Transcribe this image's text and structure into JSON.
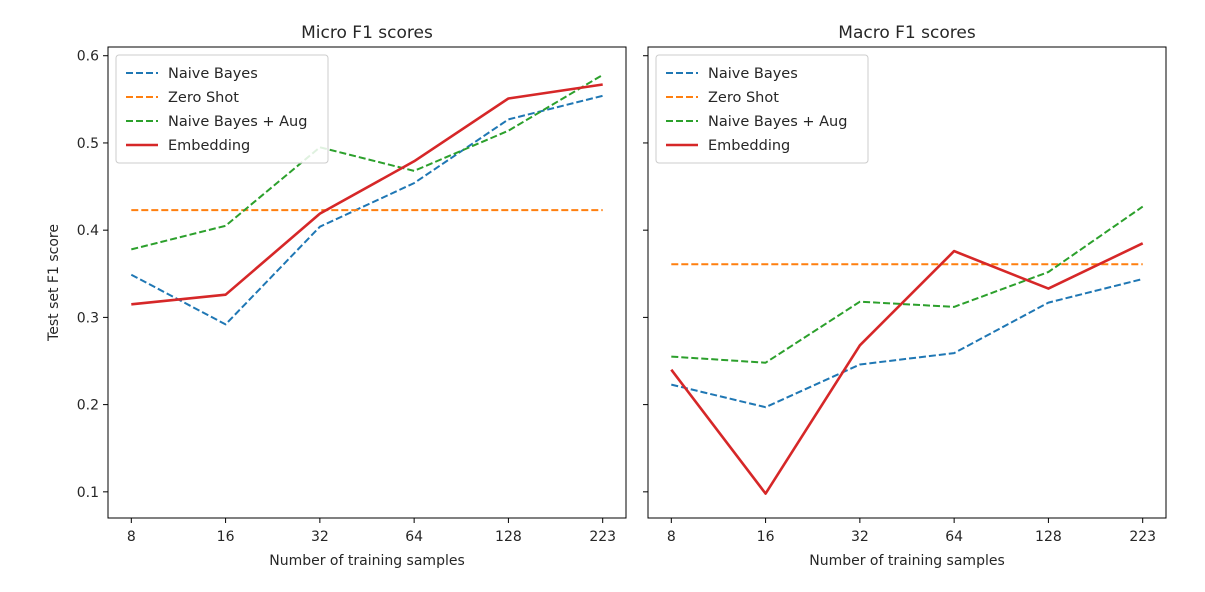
{
  "chart_data": [
    {
      "type": "line",
      "title": "Micro F1 scores",
      "xlabel": "Number of training samples",
      "ylabel": "Test set F1 score",
      "categories": [
        "8",
        "16",
        "32",
        "64",
        "128",
        "223"
      ],
      "ylim": [
        0.07,
        0.61
      ],
      "yticks": [
        "0.1",
        "0.2",
        "0.3",
        "0.4",
        "0.5",
        "0.6"
      ],
      "show_ytick_labels": true,
      "grid": false,
      "legend_position": "top-left",
      "series": [
        {
          "name": "Naive Bayes",
          "color": "#1f77b4",
          "style": "dashed",
          "values": [
            0.349,
            0.292,
            0.404,
            0.454,
            0.527,
            0.554
          ]
        },
        {
          "name": "Zero Shot",
          "color": "#ff7f0e",
          "style": "dashed",
          "values": [
            0.423,
            0.423,
            0.423,
            0.423,
            0.423,
            0.423
          ]
        },
        {
          "name": "Naive Bayes + Aug",
          "color": "#2ca02c",
          "style": "dashed",
          "values": [
            0.378,
            0.405,
            0.495,
            0.468,
            0.514,
            0.578
          ]
        },
        {
          "name": "Embedding",
          "color": "#d62728",
          "style": "solid",
          "values": [
            0.315,
            0.326,
            0.419,
            0.479,
            0.551,
            0.567
          ]
        }
      ]
    },
    {
      "type": "line",
      "title": "Macro F1 scores",
      "xlabel": "Number of training samples",
      "ylabel": "",
      "categories": [
        "8",
        "16",
        "32",
        "64",
        "128",
        "223"
      ],
      "ylim": [
        0.07,
        0.61
      ],
      "yticks": [
        "0.1",
        "0.2",
        "0.3",
        "0.4",
        "0.5",
        "0.6"
      ],
      "show_ytick_labels": false,
      "grid": false,
      "legend_position": "top-left",
      "series": [
        {
          "name": "Naive Bayes",
          "color": "#1f77b4",
          "style": "dashed",
          "values": [
            0.223,
            0.197,
            0.246,
            0.259,
            0.317,
            0.344
          ]
        },
        {
          "name": "Zero Shot",
          "color": "#ff7f0e",
          "style": "dashed",
          "values": [
            0.361,
            0.361,
            0.361,
            0.361,
            0.361,
            0.361
          ]
        },
        {
          "name": "Naive Bayes + Aug",
          "color": "#2ca02c",
          "style": "dashed",
          "values": [
            0.255,
            0.248,
            0.318,
            0.312,
            0.352,
            0.427
          ]
        },
        {
          "name": "Embedding",
          "color": "#d62728",
          "style": "solid",
          "values": [
            0.24,
            0.098,
            0.268,
            0.376,
            0.333,
            0.385
          ]
        }
      ]
    }
  ]
}
